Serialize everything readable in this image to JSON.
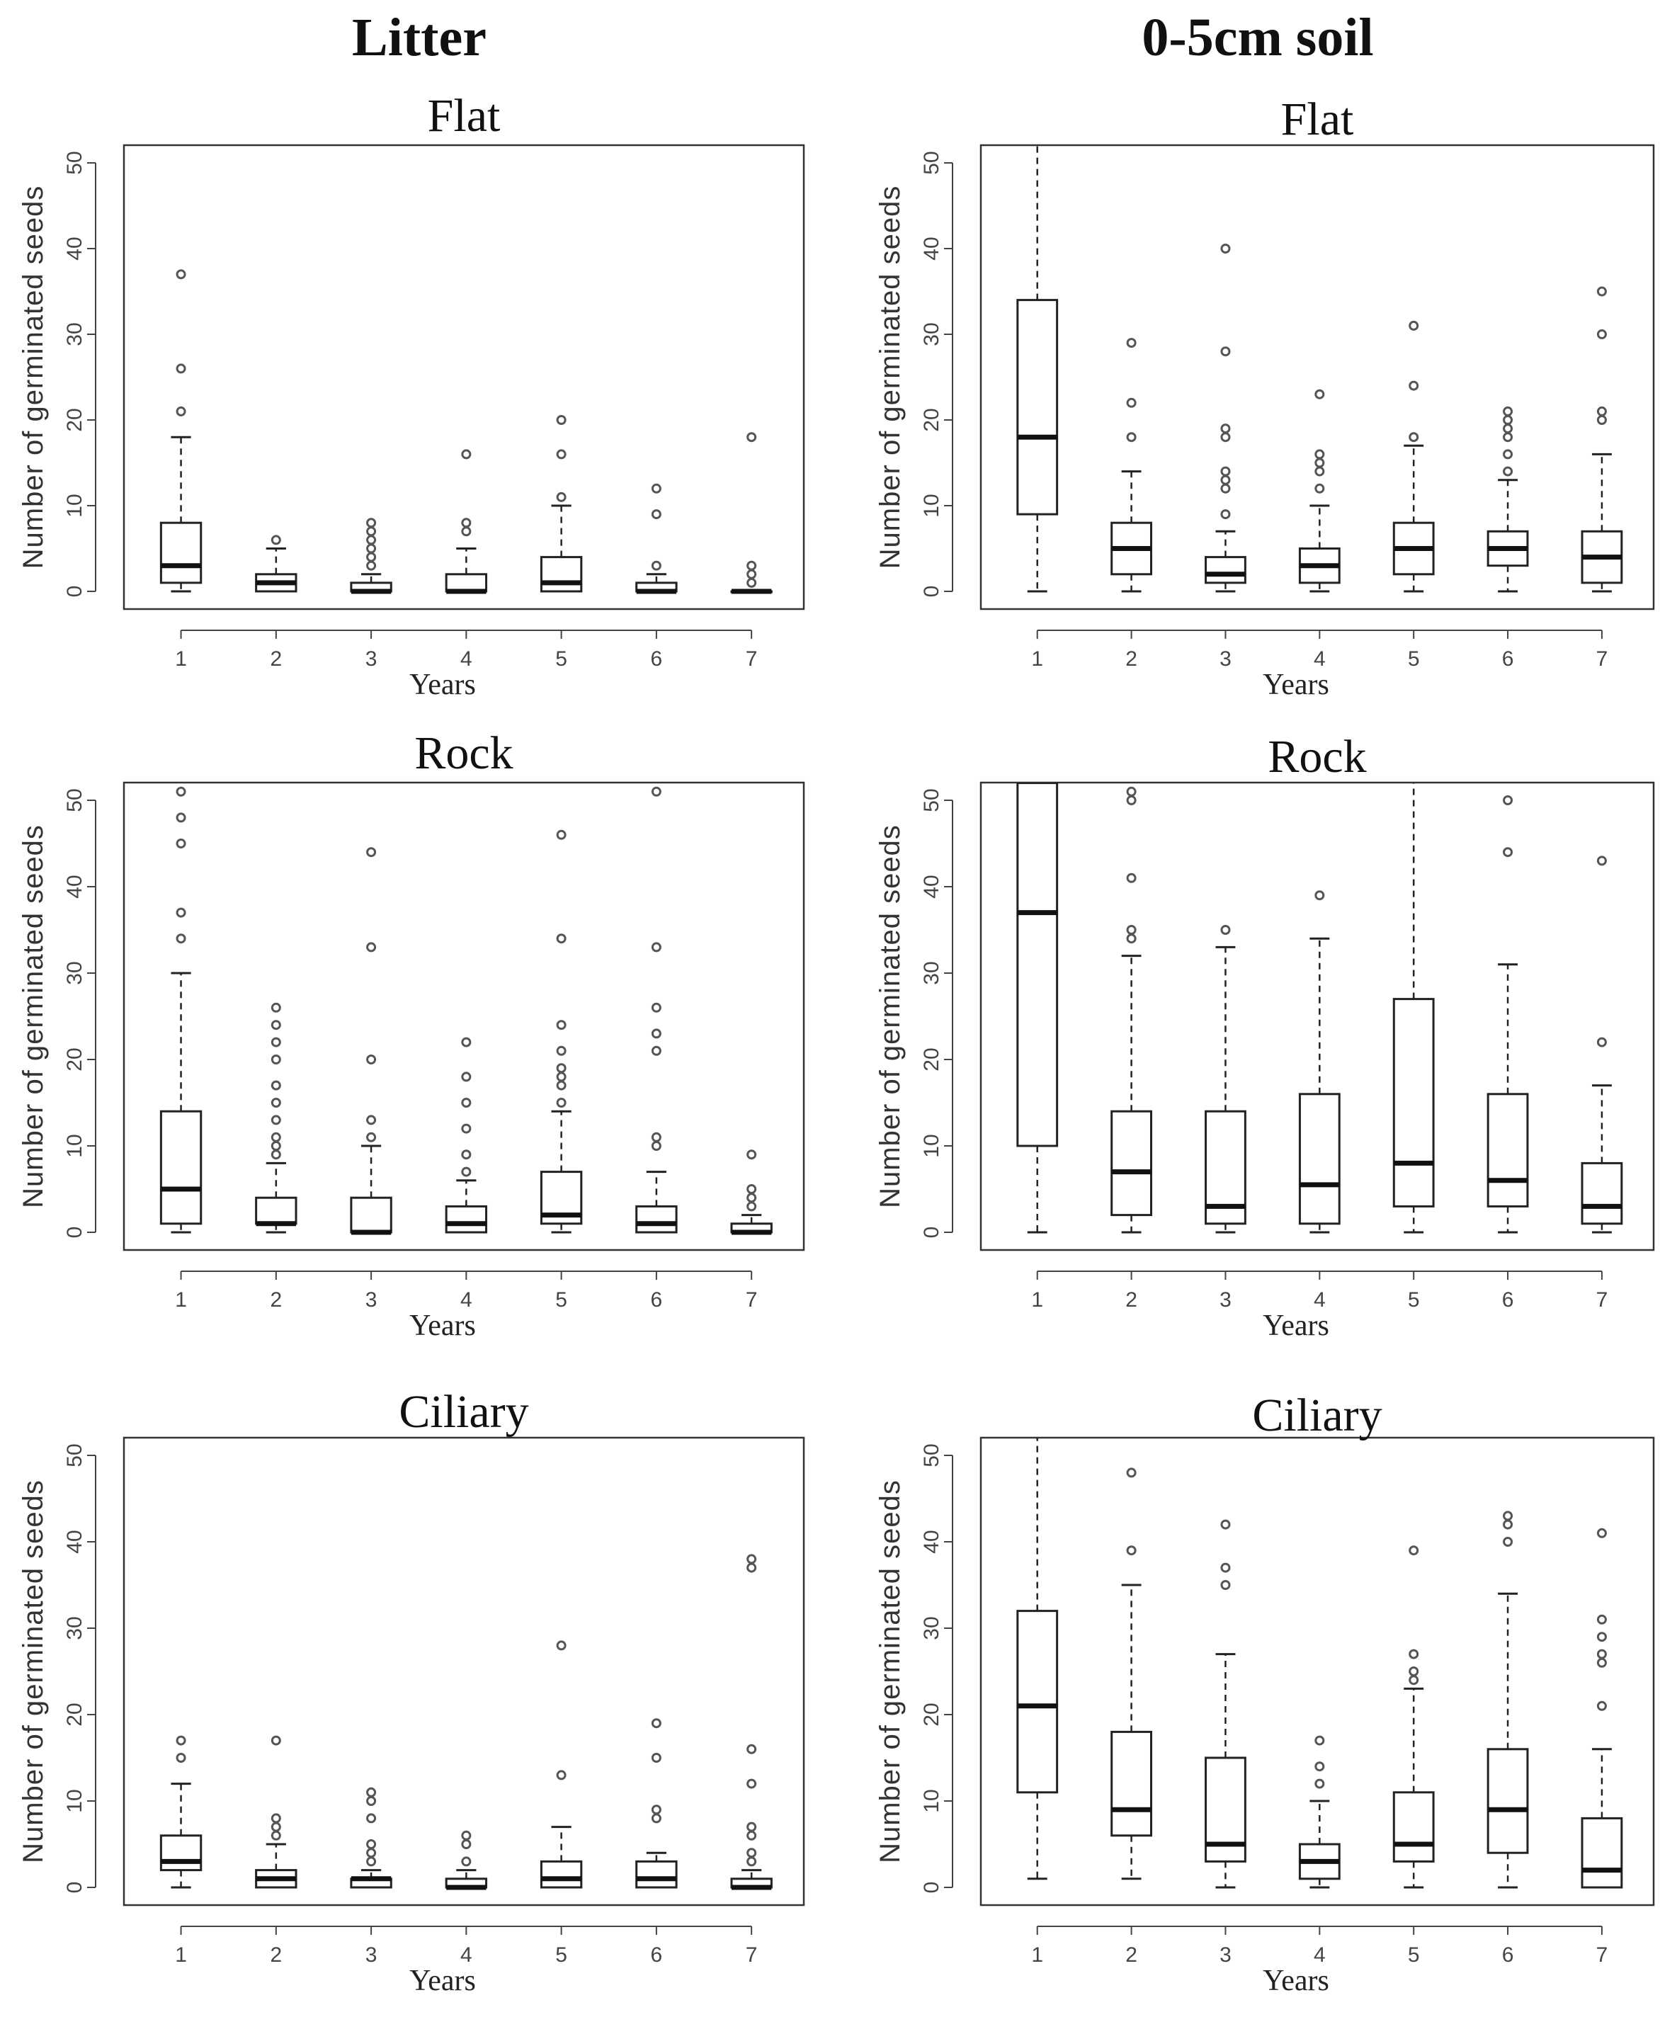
{
  "columns": [
    "Litter",
    "0-5cm soil"
  ],
  "chart_data": [
    {
      "type": "boxplot",
      "column": "Litter",
      "title": "Flat",
      "xlabel": "Years",
      "ylabel": "Number of germinated seeds",
      "ylim": [
        0,
        50
      ],
      "yticks": [
        0,
        10,
        20,
        30,
        40,
        50
      ],
      "categories": [
        "1",
        "2",
        "3",
        "4",
        "5",
        "6",
        "7"
      ],
      "boxes": [
        {
          "min": 0,
          "q1": 1,
          "median": 3,
          "q3": 8,
          "max": 18,
          "outliers": [
            21,
            26,
            37
          ]
        },
        {
          "min": 0,
          "q1": 0,
          "median": 1,
          "q3": 2,
          "max": 5,
          "outliers": [
            6
          ]
        },
        {
          "min": 0,
          "q1": 0,
          "median": 0,
          "q3": 1,
          "max": 2,
          "outliers": [
            3,
            4,
            5,
            6,
            7,
            8
          ]
        },
        {
          "min": 0,
          "q1": 0,
          "median": 0,
          "q3": 2,
          "max": 5,
          "outliers": [
            7,
            8,
            16
          ]
        },
        {
          "min": 0,
          "q1": 0,
          "median": 1,
          "q3": 4,
          "max": 10,
          "outliers": [
            11,
            16,
            20
          ]
        },
        {
          "min": 0,
          "q1": 0,
          "median": 0,
          "q3": 1,
          "max": 2,
          "outliers": [
            3,
            9,
            12
          ]
        },
        {
          "min": 0,
          "q1": 0,
          "median": 0,
          "q3": 0,
          "max": 0,
          "outliers": [
            1,
            2,
            3,
            18
          ]
        }
      ]
    },
    {
      "type": "boxplot",
      "column": "0-5cm soil",
      "title": "Flat",
      "xlabel": "Years",
      "ylabel": "Number of germinated seeds",
      "ylim": [
        0,
        50
      ],
      "yticks": [
        0,
        10,
        20,
        30,
        40,
        50
      ],
      "categories": [
        "1",
        "2",
        "3",
        "4",
        "5",
        "6",
        "7"
      ],
      "boxes": [
        {
          "min": 0,
          "q1": 9,
          "median": 18,
          "q3": 34,
          "max": 52,
          "outliers": []
        },
        {
          "min": 0,
          "q1": 2,
          "median": 5,
          "q3": 8,
          "max": 14,
          "outliers": [
            18,
            22,
            29
          ]
        },
        {
          "min": 0,
          "q1": 1,
          "median": 2,
          "q3": 4,
          "max": 7,
          "outliers": [
            9,
            12,
            13,
            14,
            18,
            19,
            28,
            40
          ]
        },
        {
          "min": 0,
          "q1": 1,
          "median": 3,
          "q3": 5,
          "max": 10,
          "outliers": [
            12,
            14,
            15,
            16,
            23
          ]
        },
        {
          "min": 0,
          "q1": 2,
          "median": 5,
          "q3": 8,
          "max": 17,
          "outliers": [
            18,
            24,
            31
          ]
        },
        {
          "min": 0,
          "q1": 3,
          "median": 5,
          "q3": 7,
          "max": 13,
          "outliers": [
            14,
            16,
            18,
            19,
            20,
            21
          ]
        },
        {
          "min": 0,
          "q1": 1,
          "median": 4,
          "q3": 7,
          "max": 16,
          "outliers": [
            20,
            21,
            30,
            35
          ]
        }
      ]
    },
    {
      "type": "boxplot",
      "column": "Litter",
      "title": "Rock",
      "xlabel": "Years",
      "ylabel": "Number of germinated seeds",
      "ylim": [
        0,
        50
      ],
      "yticks": [
        0,
        10,
        20,
        30,
        40,
        50
      ],
      "categories": [
        "1",
        "2",
        "3",
        "4",
        "5",
        "6",
        "7"
      ],
      "boxes": [
        {
          "min": 0,
          "q1": 1,
          "median": 5,
          "q3": 14,
          "max": 30,
          "outliers": [
            34,
            37,
            45,
            48,
            51
          ]
        },
        {
          "min": 0,
          "q1": 1,
          "median": 1,
          "q3": 4,
          "max": 8,
          "outliers": [
            9,
            10,
            11,
            13,
            15,
            17,
            20,
            22,
            24,
            26
          ]
        },
        {
          "min": 0,
          "q1": 0,
          "median": 0,
          "q3": 4,
          "max": 10,
          "outliers": [
            11,
            13,
            20,
            33,
            44
          ]
        },
        {
          "min": 0,
          "q1": 0,
          "median": 1,
          "q3": 3,
          "max": 6,
          "outliers": [
            7,
            9,
            12,
            15,
            18,
            22
          ]
        },
        {
          "min": 0,
          "q1": 1,
          "median": 2,
          "q3": 7,
          "max": 14,
          "outliers": [
            15,
            17,
            18,
            19,
            21,
            24,
            34,
            46
          ]
        },
        {
          "min": 0,
          "q1": 0,
          "median": 1,
          "q3": 3,
          "max": 7,
          "outliers": [
            10,
            11,
            21,
            23,
            26,
            33,
            51
          ]
        },
        {
          "min": 0,
          "q1": 0,
          "median": 0,
          "q3": 1,
          "max": 2,
          "outliers": [
            3,
            4,
            5,
            9
          ]
        }
      ]
    },
    {
      "type": "boxplot",
      "column": "0-5cm soil",
      "title": "Rock",
      "xlabel": "Years",
      "ylabel": "Number of germinated seeds",
      "ylim": [
        0,
        50
      ],
      "yticks": [
        0,
        10,
        20,
        30,
        40,
        50
      ],
      "categories": [
        "1",
        "2",
        "3",
        "4",
        "5",
        "6",
        "7"
      ],
      "boxes": [
        {
          "min": 0,
          "q1": 10,
          "median": 37,
          "q3": 52,
          "max": 52,
          "outliers": []
        },
        {
          "min": 0,
          "q1": 2,
          "median": 7,
          "q3": 14,
          "max": 32,
          "outliers": [
            34,
            35,
            41,
            50,
            51
          ]
        },
        {
          "min": 0,
          "q1": 1,
          "median": 3,
          "q3": 14,
          "max": 33,
          "outliers": [
            35
          ]
        },
        {
          "min": 0,
          "q1": 1,
          "median": 5.5,
          "q3": 16,
          "max": 34,
          "outliers": [
            39
          ]
        },
        {
          "min": 0,
          "q1": 3,
          "median": 8,
          "q3": 27,
          "max": 52,
          "outliers": []
        },
        {
          "min": 0,
          "q1": 3,
          "median": 6,
          "q3": 16,
          "max": 31,
          "outliers": [
            44,
            50
          ]
        },
        {
          "min": 0,
          "q1": 1,
          "median": 3,
          "q3": 8,
          "max": 17,
          "outliers": [
            22,
            43
          ]
        }
      ]
    },
    {
      "type": "boxplot",
      "column": "Litter",
      "title": "Ciliary",
      "xlabel": "Years",
      "ylabel": "Number of germinated seeds",
      "ylim": [
        0,
        50
      ],
      "yticks": [
        0,
        10,
        20,
        30,
        40,
        50
      ],
      "categories": [
        "1",
        "2",
        "3",
        "4",
        "5",
        "6",
        "7"
      ],
      "boxes": [
        {
          "min": 0,
          "q1": 2,
          "median": 3,
          "q3": 6,
          "max": 12,
          "outliers": [
            15,
            17
          ]
        },
        {
          "min": 0,
          "q1": 0,
          "median": 1,
          "q3": 2,
          "max": 5,
          "outliers": [
            6,
            7,
            8,
            17
          ]
        },
        {
          "min": 0,
          "q1": 0,
          "median": 1,
          "q3": 1,
          "max": 2,
          "outliers": [
            3,
            4,
            5,
            8,
            10,
            11
          ]
        },
        {
          "min": 0,
          "q1": 0,
          "median": 0,
          "q3": 1,
          "max": 2,
          "outliers": [
            3,
            5,
            6
          ]
        },
        {
          "min": 0,
          "q1": 0,
          "median": 1,
          "q3": 3,
          "max": 7,
          "outliers": [
            13,
            28
          ]
        },
        {
          "min": 0,
          "q1": 0,
          "median": 1,
          "q3": 3,
          "max": 4,
          "outliers": [
            8,
            9,
            15,
            19
          ]
        },
        {
          "min": 0,
          "q1": 0,
          "median": 0,
          "q3": 1,
          "max": 2,
          "outliers": [
            3,
            4,
            6,
            7,
            12,
            16,
            37,
            38
          ]
        }
      ]
    },
    {
      "type": "boxplot",
      "column": "0-5cm soil",
      "title": "Ciliary",
      "xlabel": "Years",
      "ylabel": "Number of germinated seeds",
      "ylim": [
        0,
        50
      ],
      "yticks": [
        0,
        10,
        20,
        30,
        40,
        50
      ],
      "categories": [
        "1",
        "2",
        "3",
        "4",
        "5",
        "6",
        "7"
      ],
      "boxes": [
        {
          "min": 1,
          "q1": 11,
          "median": 21,
          "q3": 32,
          "max": 52,
          "outliers": []
        },
        {
          "min": 1,
          "q1": 6,
          "median": 9,
          "q3": 18,
          "max": 35,
          "outliers": [
            39,
            48
          ]
        },
        {
          "min": 0,
          "q1": 3,
          "median": 5,
          "q3": 15,
          "max": 27,
          "outliers": [
            35,
            37,
            42
          ]
        },
        {
          "min": 0,
          "q1": 1,
          "median": 3,
          "q3": 5,
          "max": 10,
          "outliers": [
            12,
            14,
            17
          ]
        },
        {
          "min": 0,
          "q1": 3,
          "median": 5,
          "q3": 11,
          "max": 23,
          "outliers": [
            24,
            25,
            27,
            39
          ]
        },
        {
          "min": 0,
          "q1": 4,
          "median": 9,
          "q3": 16,
          "max": 34,
          "outliers": [
            40,
            42,
            43
          ]
        },
        {
          "min": 0,
          "q1": 0,
          "median": 2,
          "q3": 8,
          "max": 16,
          "outliers": [
            21,
            26,
            27,
            29,
            31,
            41
          ]
        }
      ]
    }
  ]
}
